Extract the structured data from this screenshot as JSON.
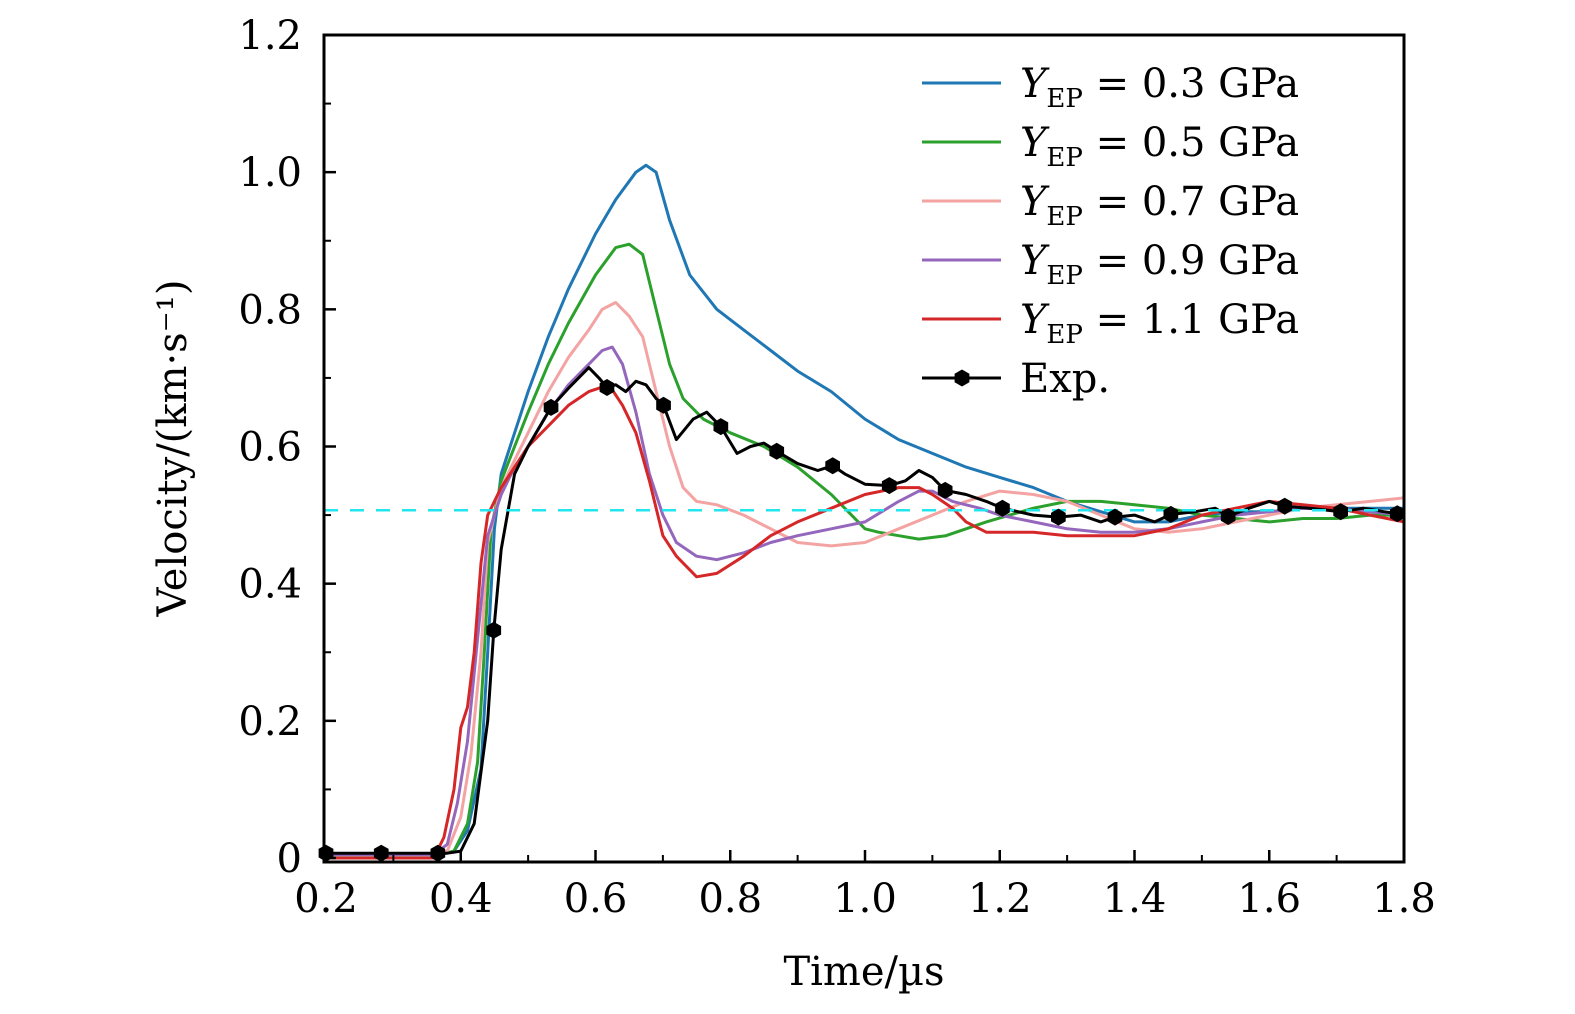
{
  "chart_data": {
    "type": "line",
    "title": "",
    "xlabel": "Time/µs",
    "ylabel": "Velocity/(km·s⁻¹)",
    "xlim": [
      0.2,
      1.8
    ],
    "ylim": [
      0,
      1.2
    ],
    "xticks": [
      0.2,
      0.4,
      0.6,
      0.8,
      1.0,
      1.2,
      1.4,
      1.6,
      1.8
    ],
    "xtick_labels": [
      "0.2",
      "0.4",
      "0.6",
      "0.8",
      "1.0",
      "1.2",
      "1.4",
      "1.6",
      "1.8"
    ],
    "yticks": [
      0,
      0.2,
      0.4,
      0.6,
      0.8,
      1.0,
      1.2
    ],
    "ytick_labels": [
      "0",
      "0.2",
      "0.4",
      "0.6",
      "0.8",
      "1.0",
      "1.2"
    ],
    "grid": false,
    "legend_position": "top-right",
    "reference_line": {
      "type": "horizontal-dashed",
      "y": 0.507,
      "color": "#22e5ee"
    },
    "series": [
      {
        "name": "Y_EP = 0.3 GPa",
        "legend_symbol": "Y",
        "legend_subscript": "EP",
        "legend_rest": " = 0.3 GPa",
        "color": "#1f77b4",
        "marker": "none",
        "x": [
          0.2,
          0.37,
          0.39,
          0.41,
          0.43,
          0.44,
          0.45,
          0.46,
          0.48,
          0.5,
          0.53,
          0.56,
          0.6,
          0.63,
          0.66,
          0.675,
          0.69,
          0.71,
          0.74,
          0.78,
          0.82,
          0.86,
          0.9,
          0.95,
          1.0,
          1.05,
          1.1,
          1.15,
          1.2,
          1.25,
          1.3,
          1.35,
          1.4,
          1.45,
          1.5,
          1.55,
          1.6,
          1.65,
          1.7,
          1.75,
          1.8
        ],
        "y": [
          0.005,
          0.005,
          0.01,
          0.04,
          0.13,
          0.3,
          0.48,
          0.56,
          0.62,
          0.68,
          0.76,
          0.83,
          0.91,
          0.96,
          1.0,
          1.01,
          1.0,
          0.93,
          0.85,
          0.8,
          0.77,
          0.74,
          0.71,
          0.68,
          0.64,
          0.61,
          0.59,
          0.57,
          0.555,
          0.54,
          0.52,
          0.505,
          0.49,
          0.49,
          0.5,
          0.505,
          0.505,
          0.51,
          0.51,
          0.51,
          0.51
        ]
      },
      {
        "name": "Y_EP = 0.5 GPa",
        "legend_symbol": "Y",
        "legend_subscript": "EP",
        "legend_rest": " = 0.5 GPa",
        "color": "#2ca02c",
        "marker": "none",
        "x": [
          0.2,
          0.37,
          0.39,
          0.41,
          0.425,
          0.435,
          0.445,
          0.46,
          0.48,
          0.5,
          0.53,
          0.56,
          0.6,
          0.63,
          0.65,
          0.67,
          0.69,
          0.71,
          0.73,
          0.76,
          0.8,
          0.85,
          0.9,
          0.95,
          0.98,
          1.0,
          1.02,
          1.05,
          1.08,
          1.12,
          1.18,
          1.25,
          1.3,
          1.35,
          1.4,
          1.45,
          1.5,
          1.55,
          1.6,
          1.65,
          1.7,
          1.75,
          1.8
        ],
        "y": [
          0.005,
          0.005,
          0.01,
          0.05,
          0.14,
          0.3,
          0.48,
          0.55,
          0.6,
          0.65,
          0.72,
          0.78,
          0.85,
          0.89,
          0.895,
          0.88,
          0.8,
          0.72,
          0.67,
          0.64,
          0.62,
          0.6,
          0.57,
          0.53,
          0.5,
          0.48,
          0.475,
          0.47,
          0.465,
          0.47,
          0.49,
          0.51,
          0.52,
          0.52,
          0.515,
          0.51,
          0.5,
          0.495,
          0.49,
          0.495,
          0.495,
          0.5,
          0.5
        ]
      },
      {
        "name": "Y_EP = 0.7 GPa",
        "legend_symbol": "Y",
        "legend_subscript": "EP",
        "legend_rest": " = 0.7 GPa",
        "color": "#f4a3a3",
        "marker": "none",
        "x": [
          0.2,
          0.36,
          0.38,
          0.4,
          0.415,
          0.43,
          0.44,
          0.46,
          0.48,
          0.5,
          0.53,
          0.56,
          0.59,
          0.61,
          0.63,
          0.65,
          0.67,
          0.69,
          0.71,
          0.73,
          0.75,
          0.78,
          0.82,
          0.86,
          0.9,
          0.95,
          1.0,
          1.05,
          1.1,
          1.15,
          1.2,
          1.25,
          1.3,
          1.35,
          1.4,
          1.45,
          1.5,
          1.55,
          1.6,
          1.65,
          1.7,
          1.75,
          1.8
        ],
        "y": [
          0.005,
          0.005,
          0.01,
          0.06,
          0.15,
          0.3,
          0.46,
          0.54,
          0.58,
          0.62,
          0.68,
          0.73,
          0.77,
          0.8,
          0.81,
          0.79,
          0.76,
          0.68,
          0.6,
          0.54,
          0.52,
          0.515,
          0.5,
          0.48,
          0.46,
          0.455,
          0.46,
          0.48,
          0.5,
          0.52,
          0.535,
          0.53,
          0.52,
          0.5,
          0.48,
          0.475,
          0.48,
          0.49,
          0.5,
          0.51,
          0.515,
          0.52,
          0.525
        ]
      },
      {
        "name": "Y_EP = 0.9 GPa",
        "legend_symbol": "Y",
        "legend_subscript": "EP",
        "legend_rest": " = 0.9 GPa",
        "color": "#9467bd",
        "marker": "none",
        "x": [
          0.2,
          0.36,
          0.38,
          0.395,
          0.41,
          0.425,
          0.44,
          0.46,
          0.48,
          0.5,
          0.53,
          0.56,
          0.59,
          0.61,
          0.625,
          0.64,
          0.66,
          0.68,
          0.7,
          0.72,
          0.75,
          0.78,
          0.82,
          0.86,
          0.9,
          0.95,
          1.0,
          1.05,
          1.08,
          1.1,
          1.13,
          1.17,
          1.2,
          1.25,
          1.3,
          1.35,
          1.4,
          1.45,
          1.5,
          1.55,
          1.6,
          1.65,
          1.7,
          1.75,
          1.8
        ],
        "y": [
          0.005,
          0.005,
          0.02,
          0.08,
          0.17,
          0.32,
          0.47,
          0.53,
          0.57,
          0.6,
          0.65,
          0.69,
          0.72,
          0.74,
          0.745,
          0.72,
          0.65,
          0.56,
          0.5,
          0.46,
          0.44,
          0.435,
          0.445,
          0.46,
          0.47,
          0.48,
          0.49,
          0.52,
          0.535,
          0.535,
          0.52,
          0.51,
          0.5,
          0.49,
          0.48,
          0.475,
          0.475,
          0.48,
          0.49,
          0.5,
          0.505,
          0.51,
          0.51,
          0.505,
          0.5
        ]
      },
      {
        "name": "Y_EP = 1.1 GPa",
        "legend_symbol": "Y",
        "legend_subscript": "EP",
        "legend_rest": " = 1.1 GPa",
        "color": "#d62728",
        "marker": "none",
        "x": [
          0.2,
          0.36,
          0.375,
          0.39,
          0.4,
          0.41,
          0.42,
          0.43,
          0.44,
          0.45,
          0.46,
          0.48,
          0.5,
          0.53,
          0.56,
          0.59,
          0.62,
          0.64,
          0.66,
          0.68,
          0.7,
          0.72,
          0.75,
          0.78,
          0.82,
          0.86,
          0.9,
          0.95,
          1.0,
          1.05,
          1.08,
          1.1,
          1.13,
          1.15,
          1.18,
          1.2,
          1.25,
          1.3,
          1.35,
          1.4,
          1.45,
          1.5,
          1.55,
          1.6,
          1.65,
          1.7,
          1.75,
          1.8
        ],
        "y": [
          0.0,
          0.0,
          0.03,
          0.1,
          0.19,
          0.22,
          0.3,
          0.43,
          0.5,
          0.52,
          0.54,
          0.57,
          0.6,
          0.63,
          0.66,
          0.68,
          0.69,
          0.66,
          0.62,
          0.55,
          0.47,
          0.44,
          0.41,
          0.415,
          0.44,
          0.47,
          0.49,
          0.51,
          0.53,
          0.54,
          0.54,
          0.53,
          0.51,
          0.49,
          0.475,
          0.475,
          0.475,
          0.47,
          0.47,
          0.47,
          0.48,
          0.5,
          0.51,
          0.52,
          0.515,
          0.51,
          0.5,
          0.49
        ]
      },
      {
        "name": "Exp.",
        "legend_symbol": "Exp.",
        "legend_subscript": "",
        "legend_rest": "",
        "color": "#000000",
        "marker": "hexagon",
        "x": [
          0.2,
          0.36,
          0.38,
          0.4,
          0.42,
          0.44,
          0.449,
          0.46,
          0.48,
          0.5,
          0.534,
          0.56,
          0.59,
          0.605,
          0.617,
          0.63,
          0.645,
          0.66,
          0.675,
          0.69,
          0.701,
          0.72,
          0.745,
          0.765,
          0.786,
          0.81,
          0.83,
          0.85,
          0.869,
          0.9,
          0.93,
          0.952,
          0.97,
          1.0,
          1.036,
          1.06,
          1.08,
          1.1,
          1.119,
          1.15,
          1.18,
          1.204,
          1.25,
          1.287,
          1.32,
          1.35,
          1.371,
          1.4,
          1.43,
          1.454,
          1.49,
          1.52,
          1.539,
          1.57,
          1.6,
          1.623,
          1.66,
          1.706,
          1.74,
          1.77,
          1.79,
          1.8
        ],
        "y": [
          0.007,
          0.007,
          0.007,
          0.01,
          0.05,
          0.2,
          0.332,
          0.45,
          0.56,
          0.6,
          0.657,
          0.685,
          0.715,
          0.7,
          0.686,
          0.69,
          0.68,
          0.695,
          0.69,
          0.67,
          0.66,
          0.61,
          0.64,
          0.65,
          0.629,
          0.59,
          0.6,
          0.605,
          0.593,
          0.575,
          0.565,
          0.572,
          0.56,
          0.545,
          0.543,
          0.55,
          0.565,
          0.555,
          0.536,
          0.53,
          0.52,
          0.51,
          0.5,
          0.497,
          0.5,
          0.49,
          0.497,
          0.5,
          0.49,
          0.501,
          0.505,
          0.51,
          0.498,
          0.51,
          0.52,
          0.513,
          0.51,
          0.505,
          0.51,
          0.505,
          0.502,
          0.5
        ],
        "marker_x": [
          0.2,
          0.282,
          0.366,
          0.449,
          0.534,
          0.617,
          0.701,
          0.786,
          0.869,
          0.952,
          1.036,
          1.119,
          1.204,
          1.287,
          1.371,
          1.454,
          1.539,
          1.623,
          1.706,
          1.79
        ],
        "marker_y": [
          0.007,
          0.007,
          0.007,
          0.332,
          0.657,
          0.686,
          0.66,
          0.629,
          0.593,
          0.572,
          0.543,
          0.536,
          0.51,
          0.497,
          0.497,
          0.501,
          0.498,
          0.513,
          0.505,
          0.502
        ]
      }
    ]
  }
}
